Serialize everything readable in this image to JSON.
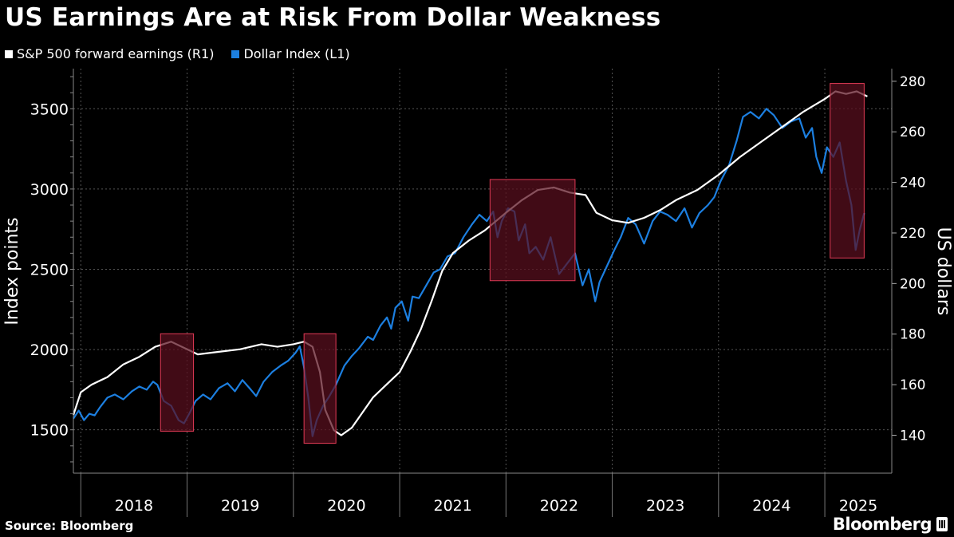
{
  "header": {
    "title": "US Earnings Are at Risk From Dollar Weakness"
  },
  "footer": {
    "source": "Source: Bloomberg",
    "brand": "Bloomberg"
  },
  "chart_data": {
    "type": "line",
    "title": "US Earnings Are at Risk From Dollar Weakness",
    "ylabel_left": "Index points",
    "ylabel_right": "US dollars",
    "ylim_left": [
      1230,
      3750
    ],
    "ylim_right": [
      125,
      285
    ],
    "yticks_left": [
      1500,
      2000,
      2500,
      3000,
      3500
    ],
    "yticks_right": [
      140,
      160,
      180,
      200,
      220,
      240,
      260,
      280
    ],
    "xlim": [
      2017.93,
      2025.63
    ],
    "x_axis_labels": [
      "2018",
      "2019",
      "2020",
      "2021",
      "2022",
      "2023",
      "2024",
      "2025"
    ],
    "grid": true,
    "legend_position": "top-left",
    "colors": {
      "earnings": "#ffffff",
      "dollar": "#1c7fe0",
      "highlight_fill": "#5a0f1e",
      "highlight_edge": "#e03a55"
    },
    "series": [
      {
        "name": "S&P 500 forward earnings (R1)",
        "axis": "right",
        "color": "#ffffff",
        "points": [
          [
            2017.93,
            148
          ],
          [
            2018.0,
            157
          ],
          [
            2018.1,
            160
          ],
          [
            2018.25,
            163
          ],
          [
            2018.4,
            168
          ],
          [
            2018.55,
            171
          ],
          [
            2018.7,
            175
          ],
          [
            2018.85,
            177
          ],
          [
            2019.0,
            174
          ],
          [
            2019.1,
            172
          ],
          [
            2019.3,
            173
          ],
          [
            2019.5,
            174
          ],
          [
            2019.7,
            176
          ],
          [
            2019.85,
            175
          ],
          [
            2020.0,
            176
          ],
          [
            2020.1,
            177
          ],
          [
            2020.18,
            175
          ],
          [
            2020.25,
            165
          ],
          [
            2020.3,
            150
          ],
          [
            2020.38,
            142
          ],
          [
            2020.45,
            140
          ],
          [
            2020.55,
            143
          ],
          [
            2020.65,
            149
          ],
          [
            2020.75,
            155
          ],
          [
            2020.9,
            161
          ],
          [
            2021.0,
            165
          ],
          [
            2021.1,
            173
          ],
          [
            2021.2,
            182
          ],
          [
            2021.3,
            193
          ],
          [
            2021.4,
            205
          ],
          [
            2021.5,
            212
          ],
          [
            2021.65,
            217
          ],
          [
            2021.8,
            221
          ],
          [
            2022.0,
            228
          ],
          [
            2022.15,
            233
          ],
          [
            2022.3,
            237
          ],
          [
            2022.45,
            238
          ],
          [
            2022.6,
            236
          ],
          [
            2022.75,
            235
          ],
          [
            2022.85,
            228
          ],
          [
            2023.0,
            225
          ],
          [
            2023.15,
            224
          ],
          [
            2023.3,
            226
          ],
          [
            2023.45,
            229
          ],
          [
            2023.6,
            233
          ],
          [
            2023.8,
            237
          ],
          [
            2024.0,
            243
          ],
          [
            2024.2,
            250
          ],
          [
            2024.4,
            256
          ],
          [
            2024.6,
            262
          ],
          [
            2024.8,
            268
          ],
          [
            2025.0,
            273
          ],
          [
            2025.1,
            276
          ],
          [
            2025.2,
            275
          ],
          [
            2025.3,
            276
          ],
          [
            2025.4,
            274
          ]
        ]
      },
      {
        "name": "Dollar Index (L1)",
        "axis": "left",
        "color": "#1c7fe0",
        "points": [
          [
            2017.93,
            1570
          ],
          [
            2017.98,
            1620
          ],
          [
            2018.03,
            1560
          ],
          [
            2018.08,
            1600
          ],
          [
            2018.13,
            1590
          ],
          [
            2018.18,
            1640
          ],
          [
            2018.25,
            1700
          ],
          [
            2018.32,
            1720
          ],
          [
            2018.4,
            1690
          ],
          [
            2018.48,
            1740
          ],
          [
            2018.55,
            1770
          ],
          [
            2018.62,
            1750
          ],
          [
            2018.68,
            1800
          ],
          [
            2018.72,
            1780
          ],
          [
            2018.78,
            1680
          ],
          [
            2018.85,
            1650
          ],
          [
            2018.92,
            1560
          ],
          [
            2018.97,
            1540
          ],
          [
            2019.02,
            1600
          ],
          [
            2019.08,
            1680
          ],
          [
            2019.15,
            1720
          ],
          [
            2019.22,
            1690
          ],
          [
            2019.3,
            1760
          ],
          [
            2019.38,
            1790
          ],
          [
            2019.45,
            1740
          ],
          [
            2019.52,
            1810
          ],
          [
            2019.6,
            1750
          ],
          [
            2019.65,
            1710
          ],
          [
            2019.72,
            1800
          ],
          [
            2019.8,
            1860
          ],
          [
            2019.88,
            1900
          ],
          [
            2019.95,
            1930
          ],
          [
            2020.02,
            1980
          ],
          [
            2020.06,
            2020
          ],
          [
            2020.1,
            1890
          ],
          [
            2020.14,
            1700
          ],
          [
            2020.18,
            1460
          ],
          [
            2020.22,
            1560
          ],
          [
            2020.28,
            1650
          ],
          [
            2020.33,
            1700
          ],
          [
            2020.4,
            1780
          ],
          [
            2020.48,
            1900
          ],
          [
            2020.55,
            1960
          ],
          [
            2020.62,
            2010
          ],
          [
            2020.7,
            2080
          ],
          [
            2020.75,
            2060
          ],
          [
            2020.82,
            2150
          ],
          [
            2020.88,
            2200
          ],
          [
            2020.92,
            2130
          ],
          [
            2020.96,
            2260
          ],
          [
            2021.02,
            2300
          ],
          [
            2021.08,
            2180
          ],
          [
            2021.12,
            2330
          ],
          [
            2021.18,
            2320
          ],
          [
            2021.25,
            2400
          ],
          [
            2021.32,
            2480
          ],
          [
            2021.38,
            2500
          ],
          [
            2021.45,
            2580
          ],
          [
            2021.52,
            2600
          ],
          [
            2021.6,
            2700
          ],
          [
            2021.68,
            2780
          ],
          [
            2021.75,
            2840
          ],
          [
            2021.82,
            2800
          ],
          [
            2021.88,
            2860
          ],
          [
            2021.92,
            2700
          ],
          [
            2021.96,
            2800
          ],
          [
            2022.02,
            2880
          ],
          [
            2022.08,
            2860
          ],
          [
            2022.12,
            2680
          ],
          [
            2022.18,
            2780
          ],
          [
            2022.22,
            2600
          ],
          [
            2022.28,
            2640
          ],
          [
            2022.35,
            2560
          ],
          [
            2022.42,
            2700
          ],
          [
            2022.5,
            2470
          ],
          [
            2022.58,
            2540
          ],
          [
            2022.65,
            2600
          ],
          [
            2022.72,
            2400
          ],
          [
            2022.78,
            2500
          ],
          [
            2022.84,
            2300
          ],
          [
            2022.88,
            2420
          ],
          [
            2022.95,
            2520
          ],
          [
            2023.02,
            2620
          ],
          [
            2023.08,
            2700
          ],
          [
            2023.15,
            2820
          ],
          [
            2023.22,
            2780
          ],
          [
            2023.3,
            2660
          ],
          [
            2023.38,
            2800
          ],
          [
            2023.45,
            2860
          ],
          [
            2023.52,
            2840
          ],
          [
            2023.6,
            2800
          ],
          [
            2023.68,
            2880
          ],
          [
            2023.75,
            2760
          ],
          [
            2023.82,
            2850
          ],
          [
            2023.9,
            2900
          ],
          [
            2023.96,
            2950
          ],
          [
            2024.02,
            3050
          ],
          [
            2024.1,
            3150
          ],
          [
            2024.17,
            3300
          ],
          [
            2024.23,
            3450
          ],
          [
            2024.3,
            3480
          ],
          [
            2024.38,
            3440
          ],
          [
            2024.45,
            3500
          ],
          [
            2024.52,
            3460
          ],
          [
            2024.6,
            3380
          ],
          [
            2024.68,
            3420
          ],
          [
            2024.76,
            3440
          ],
          [
            2024.82,
            3320
          ],
          [
            2024.88,
            3380
          ],
          [
            2024.92,
            3200
          ],
          [
            2024.97,
            3100
          ],
          [
            2025.02,
            3260
          ],
          [
            2025.08,
            3200
          ],
          [
            2025.14,
            3290
          ],
          [
            2025.2,
            3050
          ],
          [
            2025.25,
            2900
          ],
          [
            2025.29,
            2620
          ],
          [
            2025.33,
            2750
          ],
          [
            2025.37,
            2850
          ]
        ]
      }
    ],
    "highlight_periods": [
      [
        2018.75,
        2019.06
      ],
      [
        2020.1,
        2020.4
      ],
      [
        2021.85,
        2022.65
      ],
      [
        2025.05,
        2025.37
      ]
    ]
  }
}
